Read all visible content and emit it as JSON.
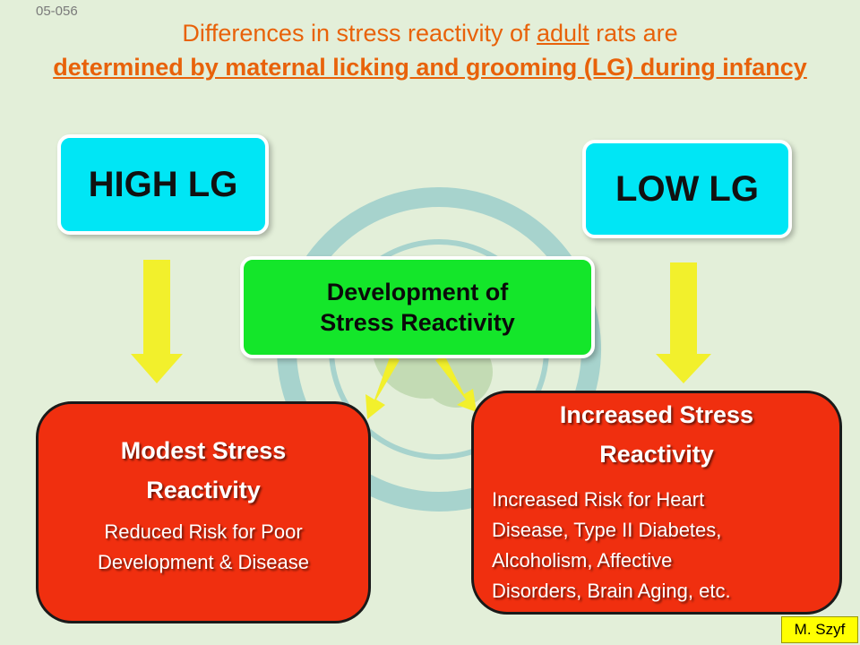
{
  "slide_code": "05-056",
  "title": {
    "part1": "Differences in stress reactivity of ",
    "adult": "adult",
    "part2": " rats are",
    "emphasis": "determined by maternal licking and grooming (LG) during infancy"
  },
  "nodes": {
    "high_lg": "HIGH LG",
    "low_lg": "LOW LG",
    "development_line1": "Development of",
    "development_line2": "Stress Reactivity",
    "modest": {
      "head_line1": "Modest Stress",
      "head_line2": "Reactivity",
      "body_line1": "Reduced Risk for Poor",
      "body_line2": "Development  & Disease"
    },
    "increased": {
      "head_line1": "Increased Stress",
      "head_line2": "Reactivity",
      "body_line1": "Increased Risk for Heart",
      "body_line2": "Disease, Type II Diabetes,",
      "body_line3": "Alcoholism, Affective",
      "body_line4": "Disorders, Brain Aging, etc."
    }
  },
  "author": "M. Szyf",
  "colors": {
    "background": "#e3efd9",
    "lg_box": "#00e6f5",
    "development_box": "#14e62a",
    "outcome_box": "#f02f0f",
    "arrow": "#f2f02c",
    "title": "#e8620a"
  }
}
